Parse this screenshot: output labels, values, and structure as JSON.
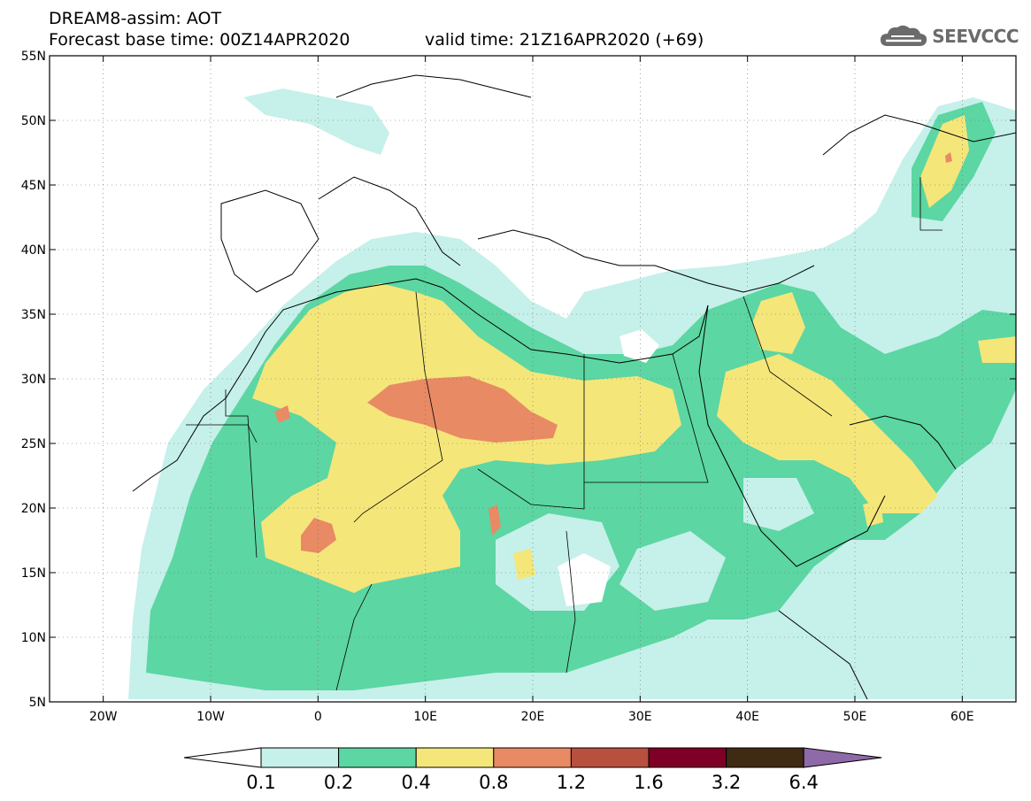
{
  "title": {
    "line1": "DREAM8-assim: AOT",
    "line2": "Forecast base time: 00Z14APR2020",
    "valid": "valid time: 21Z16APR2020 (+69)"
  },
  "logo": {
    "text": "SEEVCCC",
    "icon": "cloud-icon"
  },
  "axes": {
    "lon_labels": [
      "20W",
      "10W",
      "0",
      "10E",
      "20E",
      "30E",
      "40E",
      "50E",
      "60E"
    ],
    "lon_values": [
      -20,
      -10,
      0,
      10,
      20,
      30,
      40,
      50,
      60
    ],
    "lat_labels": [
      "55N",
      "50N",
      "45N",
      "40N",
      "35N",
      "30N",
      "25N",
      "20N",
      "15N",
      "10N",
      "5N"
    ],
    "lat_values": [
      55,
      50,
      45,
      40,
      35,
      30,
      25,
      20,
      15,
      10,
      5
    ],
    "lon_range": [
      -25,
      65
    ],
    "lat_range": [
      5,
      55
    ],
    "grid": "dotted"
  },
  "colorbar": {
    "labels": [
      "0.1",
      "0.2",
      "0.4",
      "0.8",
      "1.2",
      "1.6",
      "3.2",
      "6.4"
    ],
    "colors": [
      "#ffffff",
      "#c6f0ea",
      "#5cd6a3",
      "#f5e67a",
      "#e88a64",
      "#b8503e",
      "#7f0026",
      "#3f2a14",
      "#8e6aa8"
    ]
  }
}
